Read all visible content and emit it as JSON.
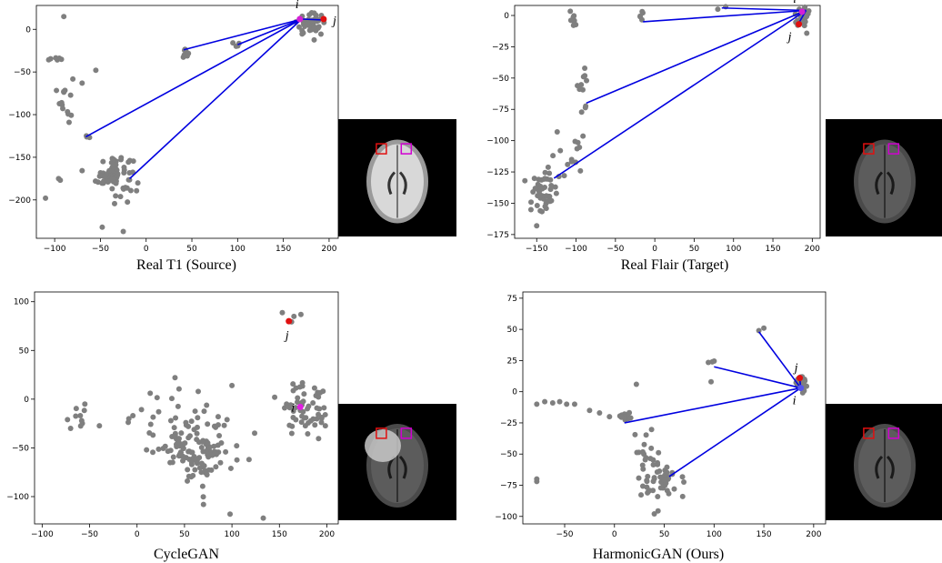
{
  "chart_data": [
    {
      "type": "scatter",
      "caption": "Real T1 (Source)",
      "xlim": [
        -120,
        210
      ],
      "ylim": [
        -245,
        28
      ],
      "xticks": [
        -100,
        -50,
        0,
        50,
        100,
        150,
        200
      ],
      "yticks": [
        0,
        -50,
        -100,
        -150,
        -200
      ],
      "point_color": "#7f7f7f",
      "clusters": [
        {
          "cx": -98,
          "cy": -35,
          "sx": 4,
          "sy": 2,
          "n": 6
        },
        {
          "cx": -88,
          "cy": -80,
          "sx": 4,
          "sy": 14,
          "n": 14
        },
        {
          "cx": -65,
          "cy": -125,
          "sx": 2,
          "sy": 2,
          "n": 3
        },
        {
          "cx": -35,
          "cy": -170,
          "sx": 10,
          "sy": 12,
          "n": 75
        },
        {
          "cx": -95,
          "cy": -175,
          "sx": 3,
          "sy": 1,
          "n": 2
        },
        {
          "cx": 42,
          "cy": -28,
          "sx": 3,
          "sy": 4,
          "n": 7
        },
        {
          "cx": 98,
          "cy": -17,
          "sx": 3,
          "sy": 2,
          "n": 4
        },
        {
          "cx": 180,
          "cy": 6,
          "sx": 8,
          "sy": 6,
          "n": 45
        }
      ],
      "extra_points": [
        [
          -90,
          15
        ],
        [
          -110,
          -198
        ],
        [
          -48,
          -232
        ],
        [
          -70,
          -63
        ],
        [
          -55,
          -48
        ],
        [
          -25,
          -237
        ]
      ],
      "highlight": {
        "i": {
          "x": 168,
          "y": 12,
          "color": "#d51fd5",
          "label": "i",
          "label_dx": -3,
          "label_dy": -12
        },
        "j": {
          "x": 194,
          "y": 12,
          "color": "#e01010",
          "label": "j",
          "label_dx": 12,
          "label_dy": 6
        }
      },
      "lines": [
        [
          170,
          12,
          41,
          -24
        ],
        [
          170,
          12,
          100,
          -18
        ],
        [
          170,
          12,
          -66,
          -126
        ],
        [
          170,
          12,
          -18,
          -175
        ],
        [
          170,
          12,
          194,
          11
        ]
      ]
    },
    {
      "type": "scatter",
      "caption": "Real Flair (Target)",
      "xlim": [
        -178,
        210
      ],
      "ylim": [
        -178,
        8
      ],
      "xticks": [
        -150,
        -100,
        -50,
        0,
        50,
        100,
        150,
        200
      ],
      "yticks": [
        0,
        -25,
        -50,
        -75,
        -100,
        -125,
        -150,
        -175
      ],
      "point_color": "#7f7f7f",
      "clusters": [
        {
          "cx": -140,
          "cy": -140,
          "sx": 8,
          "sy": 8,
          "n": 45
        },
        {
          "cx": -105,
          "cy": -115,
          "sx": 10,
          "sy": 10,
          "n": 12
        },
        {
          "cx": -90,
          "cy": -60,
          "sx": 5,
          "sy": 15,
          "n": 12
        },
        {
          "cx": -105,
          "cy": -5,
          "sx": 3,
          "sy": 4,
          "n": 8
        },
        {
          "cx": -17,
          "cy": -1,
          "sx": 2,
          "sy": 2,
          "n": 5
        },
        {
          "cx": 188,
          "cy": 0,
          "sx": 4,
          "sy": 4,
          "n": 35
        }
      ],
      "extra_points": [
        [
          -150,
          -168
        ],
        [
          -165,
          -132
        ],
        [
          80,
          5
        ],
        [
          90,
          7
        ],
        [
          -120,
          -108
        ],
        [
          -115,
          -128
        ]
      ],
      "highlight": {
        "i": {
          "x": 187,
          "y": 3,
          "color": "#d51fd5",
          "label": "i",
          "label_dx": -8,
          "label_dy": -10
        },
        "j": {
          "x": 183,
          "y": -7,
          "color": "#e01010",
          "label": "j",
          "label_dx": -10,
          "label_dy": 18
        }
      },
      "lines": [
        [
          192,
          4,
          -15,
          -5
        ],
        [
          192,
          4,
          85,
          6
        ],
        [
          192,
          4,
          -87,
          -70
        ],
        [
          192,
          4,
          -128,
          -130
        ],
        [
          192,
          4,
          183,
          -6
        ]
      ]
    },
    {
      "type": "scatter",
      "caption": "CycleGAN",
      "xlim": [
        -108,
        212
      ],
      "ylim": [
        -128,
        110
      ],
      "xticks": [
        -100,
        -50,
        0,
        50,
        100,
        150,
        200
      ],
      "yticks": [
        100,
        50,
        0,
        -50,
        -100
      ],
      "point_color": "#7f7f7f",
      "clusters": [
        {
          "cx": 65,
          "cy": -55,
          "sx": 18,
          "sy": 14,
          "n": 110
        },
        {
          "cx": 35,
          "cy": -20,
          "sx": 35,
          "sy": 15,
          "n": 35
        },
        {
          "cx": 180,
          "cy": -10,
          "sx": 13,
          "sy": 15,
          "n": 55
        },
        {
          "cx": -62,
          "cy": -20,
          "sx": 6,
          "sy": 6,
          "n": 8
        },
        {
          "cx": 163,
          "cy": 85,
          "sx": 5,
          "sy": 9,
          "n": 4
        }
      ],
      "extra_points": [
        [
          -70,
          -30
        ],
        [
          -55,
          -5
        ],
        [
          133,
          -122
        ],
        [
          98,
          -118
        ],
        [
          10,
          -52
        ],
        [
          40,
          22
        ],
        [
          118,
          -62
        ],
        [
          70,
          -108
        ],
        [
          145,
          2
        ],
        [
          100,
          14
        ]
      ],
      "highlight": {
        "i": {
          "x": 172,
          "y": -8,
          "color": "#e01fe0",
          "label": "i",
          "label_dx": -8,
          "label_dy": 5
        },
        "j": {
          "x": 160,
          "y": 80,
          "color": "#e01010",
          "label": "j",
          "label_dx": -2,
          "label_dy": 20
        }
      },
      "lines": []
    },
    {
      "type": "scatter",
      "caption": "HarmonicGAN (Ours)",
      "xlim": [
        -92,
        212
      ],
      "ylim": [
        -106,
        80
      ],
      "xticks": [
        -50,
        0,
        50,
        100,
        150,
        200
      ],
      "yticks": [
        75,
        50,
        25,
        0,
        -25,
        -50,
        -75,
        -100
      ],
      "point_color": "#7f7f7f",
      "clusters": [
        {
          "cx": 45,
          "cy": -70,
          "sx": 10,
          "sy": 10,
          "n": 50
        },
        {
          "cx": 30,
          "cy": -45,
          "sx": 6,
          "sy": 9,
          "n": 12
        },
        {
          "cx": 12,
          "cy": -20,
          "sx": 3,
          "sy": 2,
          "n": 12
        },
        {
          "cx": 188,
          "cy": 5,
          "sx": 3,
          "sy": 4,
          "n": 28
        },
        {
          "cx": 98,
          "cy": 22,
          "sx": 3,
          "sy": 2,
          "n": 3
        }
      ],
      "extra_points": [
        [
          -78,
          -10
        ],
        [
          -70,
          -8
        ],
        [
          -62,
          -9
        ],
        [
          -55,
          -8
        ],
        [
          -48,
          -10
        ],
        [
          -40,
          -10
        ],
        [
          -25,
          -15
        ],
        [
          -15,
          -17
        ],
        [
          -5,
          -20
        ],
        [
          -78,
          -70
        ],
        [
          -78,
          -72
        ],
        [
          145,
          49
        ],
        [
          150,
          51
        ],
        [
          97,
          8
        ],
        [
          22,
          6
        ],
        [
          40,
          -98
        ],
        [
          60,
          -78
        ]
      ],
      "highlight": {
        "i": {
          "x": 187,
          "y": 3,
          "color": "#5555ee",
          "label": "i",
          "label_dx": -7,
          "label_dy": 18
        },
        "j": {
          "x": 186,
          "y": 11,
          "color": "#e01010",
          "label": "j",
          "label_dx": -4,
          "label_dy": -7
        }
      },
      "lines": [
        [
          187,
          3,
          10,
          -25
        ],
        [
          187,
          3,
          100,
          20
        ],
        [
          187,
          3,
          145,
          48
        ],
        [
          187,
          3,
          55,
          -68
        ],
        [
          187,
          3,
          186,
          11
        ]
      ]
    }
  ],
  "insets": [
    {
      "red_box": "#e01010",
      "magenta_box": "#d000d0"
    },
    {
      "red_box": "#e01010",
      "magenta_box": "#d000d0"
    },
    {
      "red_box": "#e01010",
      "magenta_box": "#d000d0"
    },
    {
      "red_box": "#e01010",
      "magenta_box": "#d000d0"
    }
  ]
}
